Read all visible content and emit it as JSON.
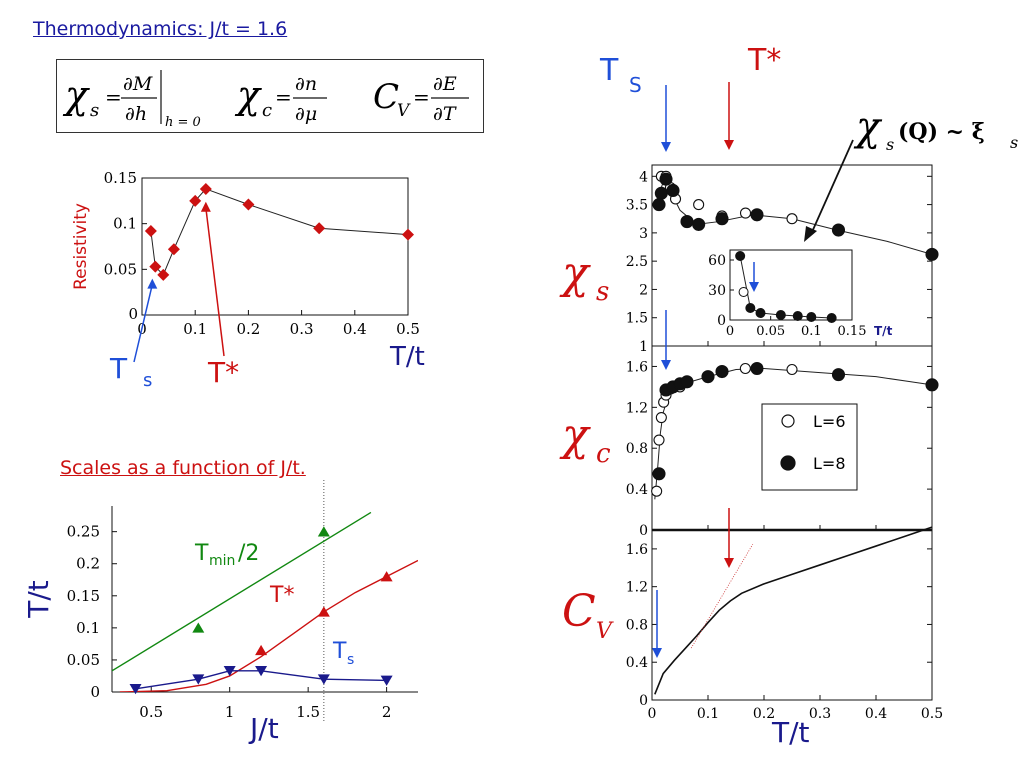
{
  "colors": {
    "blue": "#1f4fd8",
    "red": "#cc1111",
    "green": "#118811",
    "navy": "#1a1a8c",
    "black": "#111111"
  },
  "header": {
    "title": "Thermodynamics: J/t = 1.6"
  },
  "formulas": {
    "chi_s": {
      "lhs": "χ",
      "sub": "s",
      "num": "∂M",
      "den": "∂h",
      "cond": "h = 0"
    },
    "chi_c": {
      "lhs": "χ",
      "sub": "c",
      "num": "∂n",
      "den": "∂μ"
    },
    "cv": {
      "lhs": "C",
      "sub": "V",
      "num": "∂E",
      "den": "∂T"
    }
  },
  "scales_title": "Scales as a function of J/t.",
  "chart_data": [
    {
      "type": "line",
      "name": "resistivity",
      "ylabel": "Resistivity",
      "xlabel": "T/t",
      "xlim": [
        0,
        0.5
      ],
      "ylim": [
        0,
        0.15
      ],
      "xticks": [
        {
          "v": 0,
          "t": "0"
        },
        {
          "v": 0.1,
          "t": "0.1"
        },
        {
          "v": 0.2,
          "t": "0.2"
        },
        {
          "v": 0.3,
          "t": "0.3"
        },
        {
          "v": 0.4,
          "t": "0.4"
        },
        {
          "v": 0.5,
          "t": "0.5"
        }
      ],
      "yticks": [
        {
          "v": 0.05,
          "t": "0.05"
        },
        {
          "v": 0.1,
          "t": "0.1"
        },
        {
          "v": 0.15,
          "t": "0.15"
        }
      ],
      "x": [
        0.0167,
        0.025,
        0.04,
        0.06,
        0.1,
        0.12,
        0.2,
        0.333,
        0.5
      ],
      "y": [
        0.092,
        0.053,
        0.044,
        0.072,
        0.125,
        0.138,
        0.121,
        0.095,
        0.088
      ],
      "color": "#cc1111",
      "annotations": [
        {
          "text": "T",
          "sub": "s",
          "color": "#1f4fd8",
          "x": 0.025,
          "y": 0.053
        },
        {
          "text": "T*",
          "color": "#cc1111",
          "x": 0.12,
          "y": 0.124
        }
      ]
    },
    {
      "type": "line",
      "name": "scales",
      "ylabel": "T/t",
      "xlabel": "J/t",
      "xlim": [
        0.25,
        2.2
      ],
      "ylim": [
        0,
        0.29
      ],
      "xticks": [
        {
          "v": 0.5,
          "t": "0.5"
        },
        {
          "v": 1,
          "t": "1"
        },
        {
          "v": 1.5,
          "t": "1.5"
        },
        {
          "v": 2,
          "t": "2"
        }
      ],
      "yticks": [
        {
          "v": 0,
          "t": "0"
        },
        {
          "v": 0.05,
          "t": "0.05"
        },
        {
          "v": 0.1,
          "t": "0.1"
        },
        {
          "v": 0.15,
          "t": "0.15"
        },
        {
          "v": 0.2,
          "t": "0.2"
        },
        {
          "v": 0.25,
          "t": "0.25"
        }
      ],
      "vline": 1.6,
      "series": [
        {
          "name": "T_min/2",
          "label": "T",
          "label_sub": "min",
          "label_tail": "/2",
          "color": "#118811",
          "marker": "triangle-up",
          "points_x": [
            0.8,
            1.6
          ],
          "points_y": [
            0.1,
            0.25
          ],
          "line_x": [
            0.25,
            1.9
          ],
          "line_y": [
            0.033,
            0.28
          ]
        },
        {
          "name": "T*",
          "label": "T*",
          "color": "#cc1111",
          "marker": "triangle-up",
          "points_x": [
            1.2,
            1.6,
            2.0
          ],
          "points_y": [
            0.065,
            0.125,
            0.18
          ],
          "line_x": [
            0.3,
            0.6,
            0.85,
            1.0,
            1.2,
            1.4,
            1.6,
            1.8,
            2.0,
            2.2
          ],
          "line_y": [
            0,
            0.002,
            0.012,
            0.025,
            0.055,
            0.09,
            0.125,
            0.155,
            0.18,
            0.205
          ]
        },
        {
          "name": "T_s",
          "label": "T",
          "label_sub": "s",
          "color": "#1a1a8c",
          "marker": "triangle-down",
          "points_x": [
            0.4,
            0.8,
            1.0,
            1.2,
            1.6,
            2.0
          ],
          "points_y": [
            0.005,
            0.02,
            0.033,
            0.033,
            0.02,
            0.018
          ],
          "line_x": [
            0.4,
            0.8,
            1.0,
            1.2,
            1.6,
            2.0
          ],
          "line_y": [
            0.005,
            0.02,
            0.033,
            0.033,
            0.02,
            0.018
          ]
        }
      ]
    },
    {
      "type": "scatter",
      "name": "chi_s",
      "ylabel": "χs",
      "xlim": [
        0,
        0.5
      ],
      "ylim": [
        1,
        4.2
      ],
      "yticks": [
        {
          "v": 1,
          "t": "1"
        },
        {
          "v": 1.5,
          "t": "1.5"
        },
        {
          "v": 2,
          "t": "2"
        },
        {
          "v": 2.5,
          "t": "2.5"
        },
        {
          "v": 3,
          "t": "3"
        },
        {
          "v": 3.5,
          "t": "3.5"
        },
        {
          "v": 4,
          "t": "4"
        }
      ],
      "series": [
        {
          "name": "L=6",
          "marker": "open-circle",
          "x": [
            0.0167,
            0.025,
            0.033,
            0.042,
            0.0833,
            0.125,
            0.167,
            0.25,
            0.333,
            0.5
          ],
          "y": [
            4.0,
            4.0,
            3.8,
            3.6,
            3.5,
            3.3,
            3.35,
            3.25,
            3.05,
            2.62
          ]
        },
        {
          "name": "L=8",
          "marker": "filled-circle",
          "x": [
            0.0125,
            0.0167,
            0.025,
            0.0375,
            0.0625,
            0.0833,
            0.125,
            0.1875,
            0.333,
            0.5
          ],
          "y": [
            3.5,
            3.7,
            3.95,
            3.75,
            3.2,
            3.15,
            3.25,
            3.32,
            3.05,
            2.62
          ]
        }
      ],
      "curve_x": [
        0.01,
        0.02,
        0.03,
        0.05,
        0.08,
        0.12,
        0.18,
        0.25,
        0.33,
        0.42,
        0.5
      ],
      "curve_y": [
        3.6,
        3.9,
        3.8,
        3.4,
        3.15,
        3.2,
        3.32,
        3.25,
        3.05,
        2.85,
        2.62
      ],
      "inset": {
        "xlim": [
          0,
          0.15
        ],
        "ylim": [
          0,
          70
        ],
        "xticks": [
          {
            "v": 0,
            "t": "0"
          },
          {
            "v": 0.05,
            "t": "0.05"
          },
          {
            "v": 0.1,
            "t": "0.1"
          },
          {
            "v": 0.15,
            "t": "0.15"
          }
        ],
        "yticks": [
          {
            "v": 0,
            "t": "0"
          },
          {
            "v": 30,
            "t": "30"
          },
          {
            "v": 60,
            "t": "60"
          }
        ],
        "xlabel": "T/t",
        "open_x": [
          0.0167
        ],
        "open_y": [
          28
        ],
        "filled_x": [
          0.0125,
          0.025,
          0.0375,
          0.0625,
          0.0833,
          0.1,
          0.125
        ],
        "filled_y": [
          64,
          12,
          7,
          5,
          4,
          3,
          2
        ]
      },
      "annotation": {
        "text": "χ",
        "sub": "s",
        "arg": "(Q) ~ ξ",
        "sub2": "s"
      },
      "arrows": [
        {
          "label": "T",
          "sub": "S",
          "color": "#1f4fd8"
        },
        {
          "label": "T*",
          "color": "#cc1111"
        }
      ]
    },
    {
      "type": "scatter",
      "name": "chi_c",
      "ylabel": "χc",
      "xlim": [
        0,
        0.5
      ],
      "ylim": [
        0,
        1.8
      ],
      "yticks": [
        {
          "v": 0,
          "t": "0"
        },
        {
          "v": 0.4,
          "t": "0.4"
        },
        {
          "v": 0.8,
          "t": "0.8"
        },
        {
          "v": 1.2,
          "t": "1.2"
        },
        {
          "v": 1.6,
          "t": "1.6"
        }
      ],
      "series": [
        {
          "name": "L=6",
          "marker": "open-circle",
          "x": [
            0.0083,
            0.0125,
            0.0167,
            0.0208,
            0.025,
            0.0333,
            0.05,
            0.1667,
            0.25
          ],
          "y": [
            0.38,
            0.88,
            1.1,
            1.25,
            1.32,
            1.38,
            1.4,
            1.58,
            1.57
          ]
        },
        {
          "name": "L=8",
          "marker": "filled-circle",
          "x": [
            0.0125,
            0.025,
            0.0375,
            0.05,
            0.0625,
            0.1,
            0.125,
            0.1875,
            0.333,
            0.5
          ],
          "y": [
            0.55,
            1.37,
            1.4,
            1.43,
            1.45,
            1.5,
            1.55,
            1.58,
            1.52,
            1.42
          ]
        }
      ],
      "curve_x": [
        0.005,
        0.01,
        0.015,
        0.02,
        0.03,
        0.05,
        0.1,
        0.15,
        0.2,
        0.3,
        0.4,
        0.5
      ],
      "curve_y": [
        0.3,
        0.6,
        0.95,
        1.15,
        1.33,
        1.42,
        1.5,
        1.57,
        1.58,
        1.54,
        1.5,
        1.42
      ],
      "legend": [
        {
          "marker": "open-circle",
          "text": "L=6"
        },
        {
          "marker": "filled-circle",
          "text": "L=8"
        }
      ]
    },
    {
      "type": "line",
      "name": "cv",
      "ylabel": "CV",
      "xlabel": "T/t",
      "xlim": [
        0,
        0.5
      ],
      "ylim": [
        0,
        1.8
      ],
      "xticks": [
        {
          "v": 0,
          "t": "0"
        },
        {
          "v": 0.1,
          "t": "0.1"
        },
        {
          "v": 0.2,
          "t": "0.2"
        },
        {
          "v": 0.3,
          "t": "0.3"
        },
        {
          "v": 0.4,
          "t": "0.4"
        },
        {
          "v": 0.5,
          "t": "0.5"
        }
      ],
      "yticks": [
        {
          "v": 0,
          "t": "0"
        },
        {
          "v": 0.4,
          "t": "0.4"
        },
        {
          "v": 0.8,
          "t": "0.8"
        },
        {
          "v": 1.2,
          "t": "1.2"
        },
        {
          "v": 1.6,
          "t": "1.6"
        }
      ],
      "x": [
        0.005,
        0.02,
        0.04,
        0.06,
        0.08,
        0.1,
        0.12,
        0.14,
        0.16,
        0.2,
        0.25,
        0.3,
        0.35,
        0.4,
        0.45,
        0.5
      ],
      "y": [
        0.06,
        0.28,
        0.42,
        0.55,
        0.68,
        0.82,
        0.95,
        1.05,
        1.13,
        1.23,
        1.33,
        1.43,
        1.53,
        1.63,
        1.73,
        1.83
      ],
      "fit_x": [
        0.07,
        0.18
      ],
      "fit_y": [
        0.55,
        1.65
      ]
    }
  ]
}
